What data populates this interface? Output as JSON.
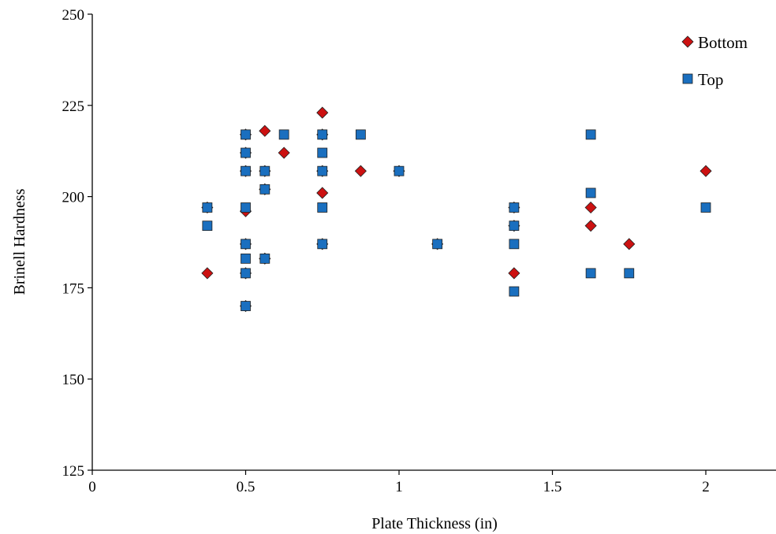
{
  "chart_data": {
    "type": "scatter",
    "title": "",
    "xlabel": "Plate Thickness  (in)",
    "ylabel": "Brinell  Hardness",
    "xlim": [
      0,
      2.25
    ],
    "ylim": [
      125,
      250
    ],
    "xticks": [
      0,
      0.5,
      1,
      1.5,
      2
    ],
    "xtick_labels": [
      "0",
      "0.5",
      "1",
      "1.5",
      "2"
    ],
    "yticks": [
      125,
      150,
      175,
      200,
      225,
      250
    ],
    "ytick_labels": [
      "125",
      "150",
      "175",
      "200",
      "225",
      "250"
    ],
    "grid": false,
    "legend_position": "top-right",
    "series": [
      {
        "name": "Bottom",
        "marker": "diamond",
        "color": "#cc1111",
        "points": [
          [
            0.375,
            197
          ],
          [
            0.375,
            179
          ],
          [
            0.5,
            217
          ],
          [
            0.5,
            212
          ],
          [
            0.5,
            207
          ],
          [
            0.5,
            196
          ],
          [
            0.5,
            187
          ],
          [
            0.5,
            179
          ],
          [
            0.5,
            170
          ],
          [
            0.5625,
            218
          ],
          [
            0.5625,
            207
          ],
          [
            0.5625,
            202
          ],
          [
            0.5625,
            183
          ],
          [
            0.625,
            212
          ],
          [
            0.75,
            223
          ],
          [
            0.75,
            217
          ],
          [
            0.75,
            207
          ],
          [
            0.75,
            201
          ],
          [
            0.75,
            187
          ],
          [
            0.875,
            207
          ],
          [
            1.0,
            207
          ],
          [
            1.125,
            187
          ],
          [
            1.375,
            197
          ],
          [
            1.375,
            192
          ],
          [
            1.375,
            179
          ],
          [
            1.625,
            197
          ],
          [
            1.625,
            192
          ],
          [
            1.75,
            187
          ],
          [
            2.0,
            207
          ]
        ]
      },
      {
        "name": "Top",
        "marker": "square",
        "color": "#1a6fbf",
        "points": [
          [
            0.375,
            197
          ],
          [
            0.375,
            192
          ],
          [
            0.5,
            217
          ],
          [
            0.5,
            212
          ],
          [
            0.5,
            207
          ],
          [
            0.5,
            197
          ],
          [
            0.5,
            187
          ],
          [
            0.5,
            183
          ],
          [
            0.5,
            179
          ],
          [
            0.5,
            170
          ],
          [
            0.5625,
            207
          ],
          [
            0.5625,
            202
          ],
          [
            0.5625,
            183
          ],
          [
            0.625,
            217
          ],
          [
            0.75,
            217
          ],
          [
            0.75,
            212
          ],
          [
            0.75,
            207
          ],
          [
            0.75,
            197
          ],
          [
            0.75,
            187
          ],
          [
            0.875,
            217
          ],
          [
            1.0,
            207
          ],
          [
            1.125,
            187
          ],
          [
            1.375,
            197
          ],
          [
            1.375,
            192
          ],
          [
            1.375,
            187
          ],
          [
            1.375,
            174
          ],
          [
            1.625,
            217
          ],
          [
            1.625,
            201
          ],
          [
            1.625,
            179
          ],
          [
            1.75,
            179
          ],
          [
            2.0,
            197
          ]
        ]
      }
    ]
  }
}
